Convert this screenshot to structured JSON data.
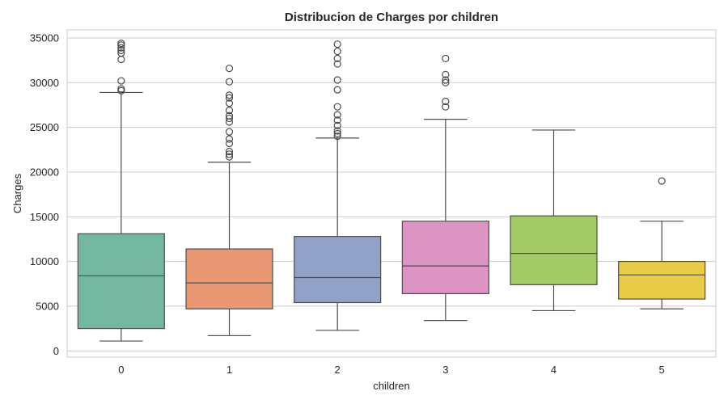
{
  "chart_data": {
    "type": "box",
    "title": "Distribucion de Charges por children",
    "xlabel": "children",
    "ylabel": "Charges",
    "categories": [
      "0",
      "1",
      "2",
      "3",
      "4",
      "5"
    ],
    "ylim": [
      -700,
      35900
    ],
    "yticks": [
      0,
      5000,
      10000,
      15000,
      20000,
      25000,
      30000,
      35000
    ],
    "grid": true,
    "colors": [
      "#75b8a2",
      "#ea9874",
      "#92a2c7",
      "#dc95c3",
      "#a3ca64",
      "#e8cc47"
    ],
    "boxes": [
      {
        "category": "0",
        "whisker_low": 1100,
        "q1": 2500,
        "median": 8400,
        "q3": 13100,
        "whisker_high": 28900,
        "outliers": [
          29100,
          29300,
          30200,
          32600,
          33300,
          33600,
          33900,
          34200,
          34400
        ]
      },
      {
        "category": "1",
        "whisker_low": 1700,
        "q1": 4700,
        "median": 7600,
        "q3": 11400,
        "whisker_high": 21100,
        "outliers": [
          21700,
          22000,
          22300,
          23200,
          23700,
          24500,
          25600,
          26000,
          26300,
          26900,
          27700,
          28300,
          28600,
          30100,
          31600
        ]
      },
      {
        "category": "2",
        "whisker_low": 2300,
        "q1": 5400,
        "median": 8200,
        "q3": 12800,
        "whisker_high": 23800,
        "outliers": [
          24000,
          24300,
          24600,
          25200,
          25800,
          26400,
          27300,
          29200,
          30300,
          32100,
          32700,
          33500,
          34300
        ]
      },
      {
        "category": "3",
        "whisker_low": 3400,
        "q1": 6400,
        "median": 9500,
        "q3": 14500,
        "whisker_high": 25900,
        "outliers": [
          27300,
          27900,
          30000,
          30300,
          30900,
          32700
        ]
      },
      {
        "category": "4",
        "whisker_low": 4500,
        "q1": 7400,
        "median": 10900,
        "q3": 15100,
        "whisker_high": 24700,
        "outliers": []
      },
      {
        "category": "5",
        "whisker_low": 4700,
        "q1": 5800,
        "median": 8500,
        "q3": 10000,
        "whisker_high": 14500,
        "outliers": [
          19000
        ]
      }
    ]
  }
}
